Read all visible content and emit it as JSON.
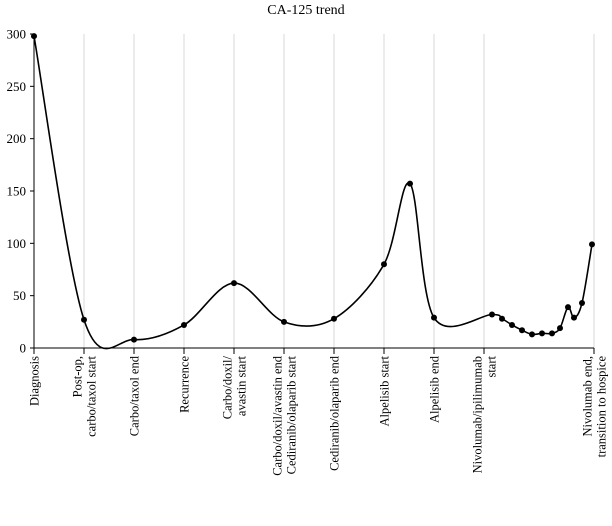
{
  "chart_data": {
    "type": "line",
    "title": "CA-125 trend",
    "xlabel": "",
    "ylabel": "",
    "ylim": [
      0,
      300
    ],
    "yticks": [
      0,
      50,
      100,
      150,
      200,
      250,
      300
    ],
    "grid": "vertical",
    "xlim": [
      0,
      28
    ],
    "tick_labels": [
      {
        "x": 0,
        "lines": [
          "Diagnosis"
        ]
      },
      {
        "x": 2.5,
        "lines": [
          "Post-op,",
          "carbo/taxol start"
        ]
      },
      {
        "x": 5,
        "lines": [
          "Carbo/taxol end"
        ]
      },
      {
        "x": 7.5,
        "lines": [
          "Recurrence"
        ]
      },
      {
        "x": 10,
        "lines": [
          "Carbo/doxil/",
          "avastin start"
        ]
      },
      {
        "x": 12.5,
        "lines": [
          "Carbo/doxil/avastin end",
          "Cediranib/olaparib start"
        ]
      },
      {
        "x": 15,
        "lines": [
          "Cediranib/olaparib end"
        ]
      },
      {
        "x": 17.5,
        "lines": [
          "Alpelisib start"
        ]
      },
      {
        "x": 20,
        "lines": [
          "Alpelisib end"
        ]
      },
      {
        "x": 22.5,
        "lines": [
          "Nivolumab/ipilimumab",
          "start"
        ]
      },
      {
        "x": 28,
        "lines": [
          "Nivolumab end,",
          "transition to hospice"
        ]
      }
    ],
    "series": [
      {
        "name": "CA-125",
        "x": [
          0,
          2.5,
          5,
          7.5,
          10,
          12.5,
          15,
          17.5,
          18.8,
          20,
          22.9,
          23.4,
          23.9,
          24.4,
          24.9,
          25.4,
          25.9,
          26.3,
          26.7,
          27.0,
          27.4,
          27.9
        ],
        "y": [
          298,
          27,
          8,
          22,
          62,
          25,
          28,
          80,
          157,
          29,
          32,
          28,
          22,
          17,
          13,
          14,
          14,
          19,
          39,
          29,
          43,
          99
        ]
      }
    ]
  }
}
